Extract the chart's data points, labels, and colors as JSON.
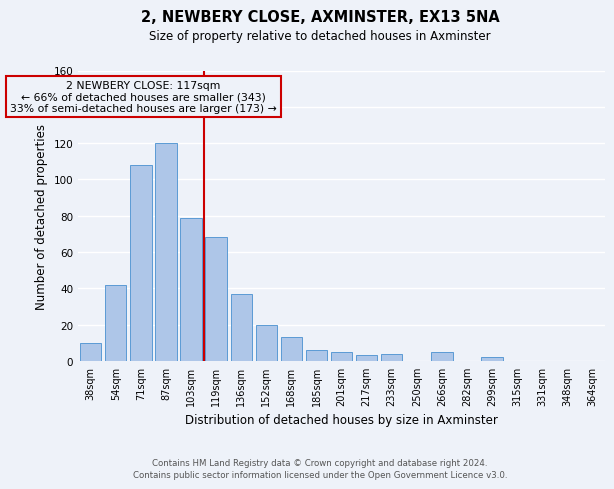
{
  "title": "2, NEWBERY CLOSE, AXMINSTER, EX13 5NA",
  "subtitle": "Size of property relative to detached houses in Axminster",
  "xlabel": "Distribution of detached houses by size in Axminster",
  "ylabel": "Number of detached properties",
  "bar_labels": [
    "38sqm",
    "54sqm",
    "71sqm",
    "87sqm",
    "103sqm",
    "119sqm",
    "136sqm",
    "152sqm",
    "168sqm",
    "185sqm",
    "201sqm",
    "217sqm",
    "233sqm",
    "250sqm",
    "266sqm",
    "282sqm",
    "299sqm",
    "315sqm",
    "331sqm",
    "348sqm",
    "364sqm"
  ],
  "bar_values": [
    10,
    42,
    108,
    120,
    79,
    68,
    37,
    20,
    13,
    6,
    5,
    3,
    4,
    0,
    5,
    0,
    2,
    0,
    0,
    0,
    0
  ],
  "bar_color": "#aec6e8",
  "bar_edge_color": "#5b9bd5",
  "marker_index": 5,
  "marker_color": "#cc0000",
  "annotation_title": "2 NEWBERY CLOSE: 117sqm",
  "annotation_line1": "← 66% of detached houses are smaller (343)",
  "annotation_line2": "33% of semi-detached houses are larger (173) →",
  "ylim": [
    0,
    160
  ],
  "yticks": [
    0,
    20,
    40,
    60,
    80,
    100,
    120,
    140,
    160
  ],
  "footnote1": "Contains HM Land Registry data © Crown copyright and database right 2024.",
  "footnote2": "Contains public sector information licensed under the Open Government Licence v3.0.",
  "bg_color": "#eef2f9"
}
